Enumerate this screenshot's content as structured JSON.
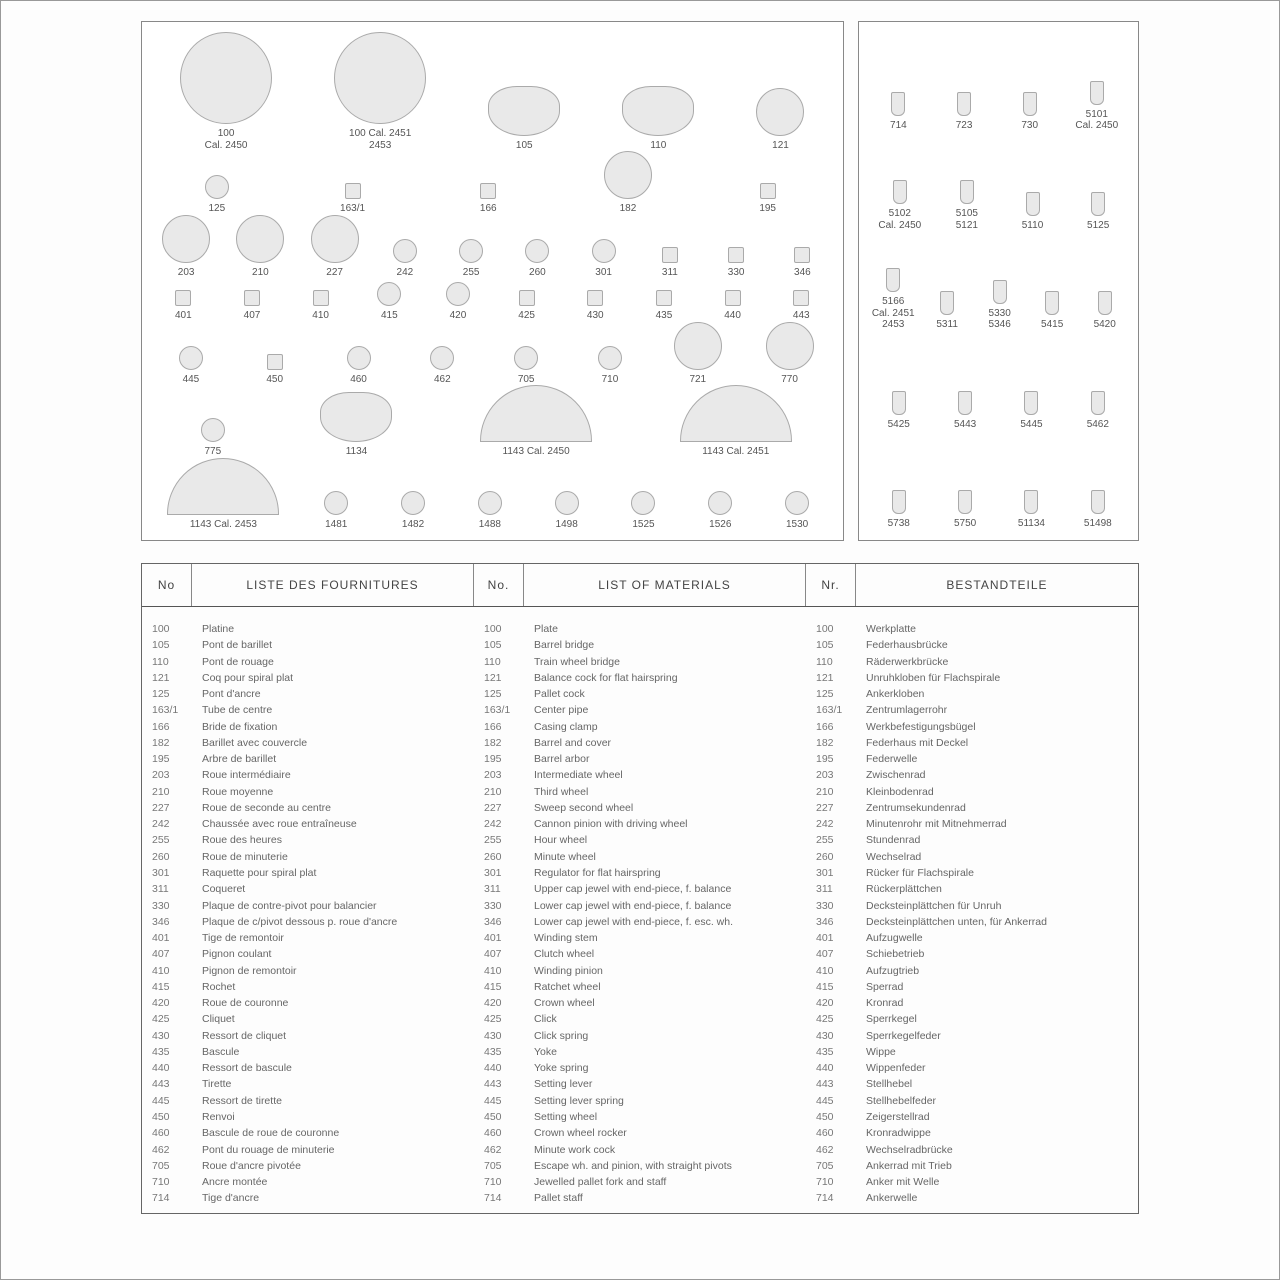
{
  "headers": {
    "no_fr": "No",
    "fr": "LISTE DES FOURNITURES",
    "no_en": "No.",
    "en": "LIST OF MATERIALS",
    "no_de": "Nr.",
    "de": "BESTANDTEILE"
  },
  "diagram_left": [
    [
      {
        "label": "100\nCal. 2450",
        "shape": "big"
      },
      {
        "label": "100 Cal. 2451\n2453",
        "shape": "big"
      },
      {
        "label": "105",
        "shape": "plate"
      },
      {
        "label": "110",
        "shape": "plate"
      },
      {
        "label": "121",
        "shape": "med"
      }
    ],
    [
      {
        "label": "125",
        "shape": "sm"
      },
      {
        "label": "163/1",
        "shape": "tiny"
      },
      {
        "label": "166",
        "shape": "tiny"
      },
      {
        "label": "182",
        "shape": "med"
      },
      {
        "label": "195",
        "shape": "tiny"
      }
    ],
    [
      {
        "label": "203",
        "shape": "med"
      },
      {
        "label": "210",
        "shape": "med"
      },
      {
        "label": "227",
        "shape": "med"
      },
      {
        "label": "242",
        "shape": "sm"
      },
      {
        "label": "255",
        "shape": "sm"
      },
      {
        "label": "260",
        "shape": "sm"
      },
      {
        "label": "301",
        "shape": "sm"
      },
      {
        "label": "311",
        "shape": "tiny"
      },
      {
        "label": "330",
        "shape": "tiny"
      },
      {
        "label": "346",
        "shape": "tiny"
      }
    ],
    [
      {
        "label": "401",
        "shape": "tiny"
      },
      {
        "label": "407",
        "shape": "tiny"
      },
      {
        "label": "410",
        "shape": "tiny"
      },
      {
        "label": "415",
        "shape": "sm"
      },
      {
        "label": "420",
        "shape": "sm"
      },
      {
        "label": "425",
        "shape": "tiny"
      },
      {
        "label": "430",
        "shape": "tiny"
      },
      {
        "label": "435",
        "shape": "tiny"
      },
      {
        "label": "440",
        "shape": "tiny"
      },
      {
        "label": "443",
        "shape": "tiny"
      }
    ],
    [
      {
        "label": "445",
        "shape": "sm"
      },
      {
        "label": "450",
        "shape": "tiny"
      },
      {
        "label": "460",
        "shape": "sm"
      },
      {
        "label": "462",
        "shape": "sm"
      },
      {
        "label": "705",
        "shape": "sm"
      },
      {
        "label": "710",
        "shape": "sm"
      },
      {
        "label": "721",
        "shape": "med"
      },
      {
        "label": "770",
        "shape": "med"
      }
    ],
    [
      {
        "label": "775",
        "shape": "sm"
      },
      {
        "label": "1134",
        "shape": "plate"
      },
      {
        "label": "1143    Cal. 2450",
        "shape": "half"
      },
      {
        "label": "1143    Cal. 2451",
        "shape": "half"
      }
    ],
    [
      {
        "label": "1143  Cal. 2453",
        "shape": "half"
      },
      {
        "label": "1481",
        "shape": "sm"
      },
      {
        "label": "1482",
        "shape": "sm"
      },
      {
        "label": "1488",
        "shape": "sm"
      },
      {
        "label": "1498",
        "shape": "sm"
      },
      {
        "label": "1525",
        "shape": "sm"
      },
      {
        "label": "1526",
        "shape": "sm"
      },
      {
        "label": "1530",
        "shape": "sm"
      }
    ]
  ],
  "diagram_right": [
    [
      {
        "label": "714",
        "shape": "screw"
      },
      {
        "label": "723",
        "shape": "screw"
      },
      {
        "label": "730",
        "shape": "screw"
      },
      {
        "label": "5101\nCal. 2450",
        "shape": "screw"
      }
    ],
    [
      {
        "label": "5102\nCal. 2450",
        "shape": "screw"
      },
      {
        "label": "5105\n5121",
        "shape": "screw"
      },
      {
        "label": "5110",
        "shape": "screw"
      },
      {
        "label": "5125",
        "shape": "screw"
      }
    ],
    [
      {
        "label": "5166\nCal. 2451\n2453",
        "shape": "screw"
      },
      {
        "label": "5311",
        "shape": "screw"
      },
      {
        "label": "5330\n5346",
        "shape": "screw"
      },
      {
        "label": "5415",
        "shape": "screw"
      },
      {
        "label": "5420",
        "shape": "screw"
      }
    ],
    [
      {
        "label": "5425",
        "shape": "screw"
      },
      {
        "label": "5443",
        "shape": "screw"
      },
      {
        "label": "5445",
        "shape": "screw"
      },
      {
        "label": "5462",
        "shape": "screw"
      }
    ],
    [
      {
        "label": "5738",
        "shape": "screw"
      },
      {
        "label": "5750",
        "shape": "screw"
      },
      {
        "label": "51134",
        "shape": "screw"
      },
      {
        "label": "51498",
        "shape": "screw"
      }
    ]
  ],
  "rows": [
    {
      "no": "100",
      "fr": "Platine",
      "en": "Plate",
      "de": "Werkplatte"
    },
    {
      "no": "105",
      "fr": "Pont de barillet",
      "en": "Barrel bridge",
      "de": "Federhausbrücke"
    },
    {
      "no": "110",
      "fr": "Pont de rouage",
      "en": "Train wheel bridge",
      "de": "Räderwerkbrücke"
    },
    {
      "no": "121",
      "fr": "Coq pour spiral plat",
      "en": "Balance cock for flat hairspring",
      "de": "Unruhkloben für Flachspirale"
    },
    {
      "no": "125",
      "fr": "Pont d'ancre",
      "en": "Pallet cock",
      "de": "Ankerkloben"
    },
    {
      "no": "163/1",
      "fr": "Tube de centre",
      "en": "Center pipe",
      "de": "Zentrumlagerrohr"
    },
    {
      "no": "166",
      "fr": "Bride de fixation",
      "en": "Casing clamp",
      "de": "Werkbefestigungsbügel"
    },
    {
      "no": "182",
      "fr": "Barillet avec couvercle",
      "en": "Barrel and cover",
      "de": "Federhaus mit Deckel"
    },
    {
      "no": "195",
      "fr": "Arbre de barillet",
      "en": "Barrel arbor",
      "de": "Federwelle"
    },
    {
      "no": "203",
      "fr": "Roue intermédiaire",
      "en": "Intermediate wheel",
      "de": "Zwischenrad"
    },
    {
      "no": "210",
      "fr": "Roue moyenne",
      "en": "Third wheel",
      "de": "Kleinbodenrad"
    },
    {
      "no": "227",
      "fr": "Roue de seconde au centre",
      "en": "Sweep second wheel",
      "de": "Zentrumsekundenrad"
    },
    {
      "no": "242",
      "fr": "Chaussée avec roue entraîneuse",
      "en": "Cannon pinion with driving wheel",
      "de": "Minutenrohr mit Mitnehmerrad"
    },
    {
      "no": "255",
      "fr": "Roue des heures",
      "en": "Hour wheel",
      "de": "Stundenrad"
    },
    {
      "no": "260",
      "fr": "Roue de minuterie",
      "en": "Minute wheel",
      "de": "Wechselrad"
    },
    {
      "no": "301",
      "fr": "Raquette pour spiral plat",
      "en": "Regulator for flat hairspring",
      "de": "Rücker für Flachspirale"
    },
    {
      "no": "311",
      "fr": "Coqueret",
      "en": "Upper cap jewel with end-piece, f. balance",
      "de": "Rückerplättchen"
    },
    {
      "no": "330",
      "fr": "Plaque de contre-pivot pour balancier",
      "en": "Lower cap jewel with end-piece, f. balance",
      "de": "Decksteinplättchen für Unruh"
    },
    {
      "no": "346",
      "fr": "Plaque de c/pivot dessous p. roue d'ancre",
      "en": "Lower cap jewel with end-piece, f. esc. wh.",
      "de": "Decksteinplättchen unten, für Ankerrad"
    },
    {
      "no": "401",
      "fr": "Tige de remontoir",
      "en": "Winding stem",
      "de": "Aufzugwelle"
    },
    {
      "no": "407",
      "fr": "Pignon coulant",
      "en": "Clutch wheel",
      "de": "Schiebetrieb"
    },
    {
      "no": "410",
      "fr": "Pignon de remontoir",
      "en": "Winding pinion",
      "de": "Aufzugtrieb"
    },
    {
      "no": "415",
      "fr": "Rochet",
      "en": "Ratchet wheel",
      "de": "Sperrad"
    },
    {
      "no": "420",
      "fr": "Roue de couronne",
      "en": "Crown wheel",
      "de": "Kronrad"
    },
    {
      "no": "425",
      "fr": "Cliquet",
      "en": "Click",
      "de": "Sperrkegel"
    },
    {
      "no": "430",
      "fr": "Ressort de cliquet",
      "en": "Click spring",
      "de": "Sperrkegelfeder"
    },
    {
      "no": "435",
      "fr": "Bascule",
      "en": "Yoke",
      "de": "Wippe"
    },
    {
      "no": "440",
      "fr": "Ressort de bascule",
      "en": "Yoke spring",
      "de": "Wippenfeder"
    },
    {
      "no": "443",
      "fr": "Tirette",
      "en": "Setting lever",
      "de": "Stellhebel"
    },
    {
      "no": "445",
      "fr": "Ressort de tirette",
      "en": "Setting lever spring",
      "de": "Stellhebelfeder"
    },
    {
      "no": "450",
      "fr": "Renvoi",
      "en": "Setting wheel",
      "de": "Zeigerstellrad"
    },
    {
      "no": "460",
      "fr": "Bascule de roue de couronne",
      "en": "Crown wheel rocker",
      "de": "Kronradwippe"
    },
    {
      "no": "462",
      "fr": "Pont du rouage de minuterie",
      "en": "Minute work cock",
      "de": "Wechselradbrücke"
    },
    {
      "no": "705",
      "fr": "Roue d'ancre pivotée",
      "en": "Escape wh. and pinion, with straight pivots",
      "de": "Ankerrad mit Trieb"
    },
    {
      "no": "710",
      "fr": "Ancre montée",
      "en": "Jewelled pallet fork and staff",
      "de": "Anker mit Welle"
    },
    {
      "no": "714",
      "fr": "Tige d'ancre",
      "en": "Pallet staff",
      "de": "Ankerwelle"
    }
  ]
}
